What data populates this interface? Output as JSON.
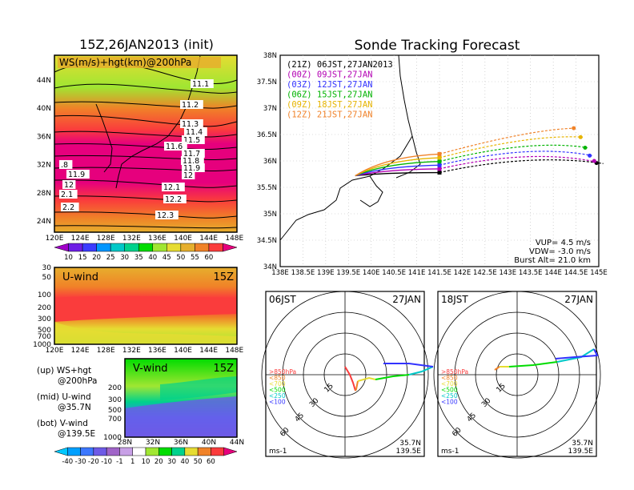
{
  "left_title": "15Z,26JAN2013 (init)",
  "right_title": "Sonde Tracking Forecast",
  "colors": {
    "ws": [
      "#a000c8",
      "#6e1ee6",
      "#3c3cff",
      "#0096ff",
      "#00c8c8",
      "#00d28c",
      "#00dc00",
      "#a0e632",
      "#e6dc32",
      "#e6af2d",
      "#f08228",
      "#fa3c3c",
      "#e6007d"
    ],
    "div": [
      "#00c8ff",
      "#00a0ff",
      "#3c78ff",
      "#6e5ae6",
      "#a064c8",
      "#c8a0e6",
      "#ffffff",
      "#a0e632",
      "#00dc00",
      "#00d28c",
      "#e6dc32",
      "#f08228",
      "#fa3c3c",
      "#e6007d"
    ],
    "traj": [
      "#000000",
      "#b400b4",
      "#3232ff",
      "#00b400",
      "#e6b400",
      "#f08228"
    ]
  },
  "chart_data": [
    {
      "type": "heatmap",
      "id": "ws_map",
      "title": "WS(m/s)+hgt(km)@200hPa",
      "x_ticks": [
        "120E",
        "124E",
        "128E",
        "132E",
        "136E",
        "140E",
        "144E",
        "148E"
      ],
      "y_ticks": [
        "24N",
        "28N",
        "32N",
        "36N",
        "40N",
        "44N"
      ],
      "colorbar_labels": [
        "10",
        "15",
        "20",
        "25",
        "30",
        "35",
        "40",
        "45",
        "50",
        "55",
        "60"
      ],
      "contour_labels": [
        "11.1",
        "11.2",
        "11.3",
        "11.4",
        "11.5",
        "11.6",
        "11.7",
        "11.8",
        "11.9",
        "12",
        "11.9",
        "12",
        "12.1",
        "12.2",
        "2.1",
        "2.2",
        "12.3",
        ".8"
      ]
    },
    {
      "type": "heatmap",
      "id": "uwind",
      "title": "U-wind",
      "time": "15Z",
      "y_ticks": [
        "30",
        "50",
        "100",
        "200",
        "300",
        "500",
        "700",
        "1000"
      ],
      "x_ticks": [
        "120E",
        "124E",
        "128E",
        "132E",
        "136E",
        "140E",
        "144E",
        "148E"
      ]
    },
    {
      "type": "heatmap",
      "id": "vwind",
      "title": "V-wind",
      "time": "15Z",
      "y_ticks": [
        "200",
        "300",
        "500",
        "700",
        "1000"
      ],
      "x_ticks": [
        "28N",
        "32N",
        "36N",
        "40N",
        "44N"
      ],
      "colorbar_labels": [
        "-40",
        "-30",
        "-20",
        "-10",
        "-1",
        "1",
        "10",
        "20",
        "30",
        "40",
        "50",
        "60"
      ]
    },
    {
      "type": "line",
      "id": "track",
      "x_ticks": [
        "138E",
        "138.5E",
        "139E",
        "139.5E",
        "140E",
        "140.5E",
        "141E",
        "141.5E",
        "142E",
        "142.5E",
        "143E",
        "143.5E",
        "144E",
        "144.5E",
        "145E"
      ],
      "y_ticks": [
        "34N",
        "34.5N",
        "35N",
        "35.5N",
        "36N",
        "36.5N",
        "37N",
        "37.5N",
        "38N"
      ],
      "xlim": [
        138,
        145
      ],
      "ylim": [
        34,
        38
      ],
      "series": [
        {
          "name": "(21Z)  06JST,27JAN2013",
          "end": [
            145.1,
            35.95
          ],
          "marker": [
            144.95,
            35.96
          ]
        },
        {
          "name": "(00Z)  09JST,27JAN",
          "end": [
            144.95,
            35.98
          ],
          "marker": [
            144.9,
            36.0
          ]
        },
        {
          "name": "(03Z)  12JST,27JAN",
          "end": [
            144.85,
            36.1
          ],
          "marker": [
            144.8,
            36.1
          ]
        },
        {
          "name": "(06Z)  15JST,27JAN",
          "end": [
            144.75,
            36.25
          ],
          "marker": [
            144.7,
            36.25
          ]
        },
        {
          "name": "(09Z)  18JST,27JAN",
          "end": [
            144.65,
            36.45
          ],
          "marker": [
            144.6,
            36.45
          ]
        },
        {
          "name": "(12Z)  21JST,27JAN",
          "end": [
            144.5,
            36.62
          ],
          "marker": [
            144.45,
            36.62
          ]
        }
      ],
      "start": [
        139.65,
        35.72
      ],
      "info": [
        "VUP=  4.5  m/s",
        "VDW=  -3.0  m/s",
        "Burst Alt=  21.0  km"
      ]
    },
    {
      "type": "line",
      "id": "hodo_left",
      "time": "06JST",
      "date": "27JAN",
      "rings": [
        "15",
        "30",
        "45",
        "60"
      ],
      "legend": [
        ">850hPa",
        "<850",
        "<700",
        "<500",
        "<250",
        "<100"
      ],
      "footer_left": "ms-1",
      "footer_right": [
        "35.7N",
        "139.5E"
      ]
    },
    {
      "type": "line",
      "id": "hodo_right",
      "time": "18JST",
      "date": "27JAN",
      "rings": [
        "15",
        "30",
        "45",
        "60"
      ],
      "legend": [
        ">850hPa",
        "<850",
        "<700",
        "<500",
        "<250",
        "<100"
      ],
      "footer_left": "ms-1",
      "footer_right": [
        "35.7N",
        "139.5E"
      ]
    }
  ],
  "notes": [
    {
      "a": "(up) WS+hgt",
      "b": "@200hPa"
    },
    {
      "a": "(mid) U-wind",
      "b": "@35.7N"
    },
    {
      "a": "(bot) V-wind",
      "b": "@139.5E"
    }
  ]
}
